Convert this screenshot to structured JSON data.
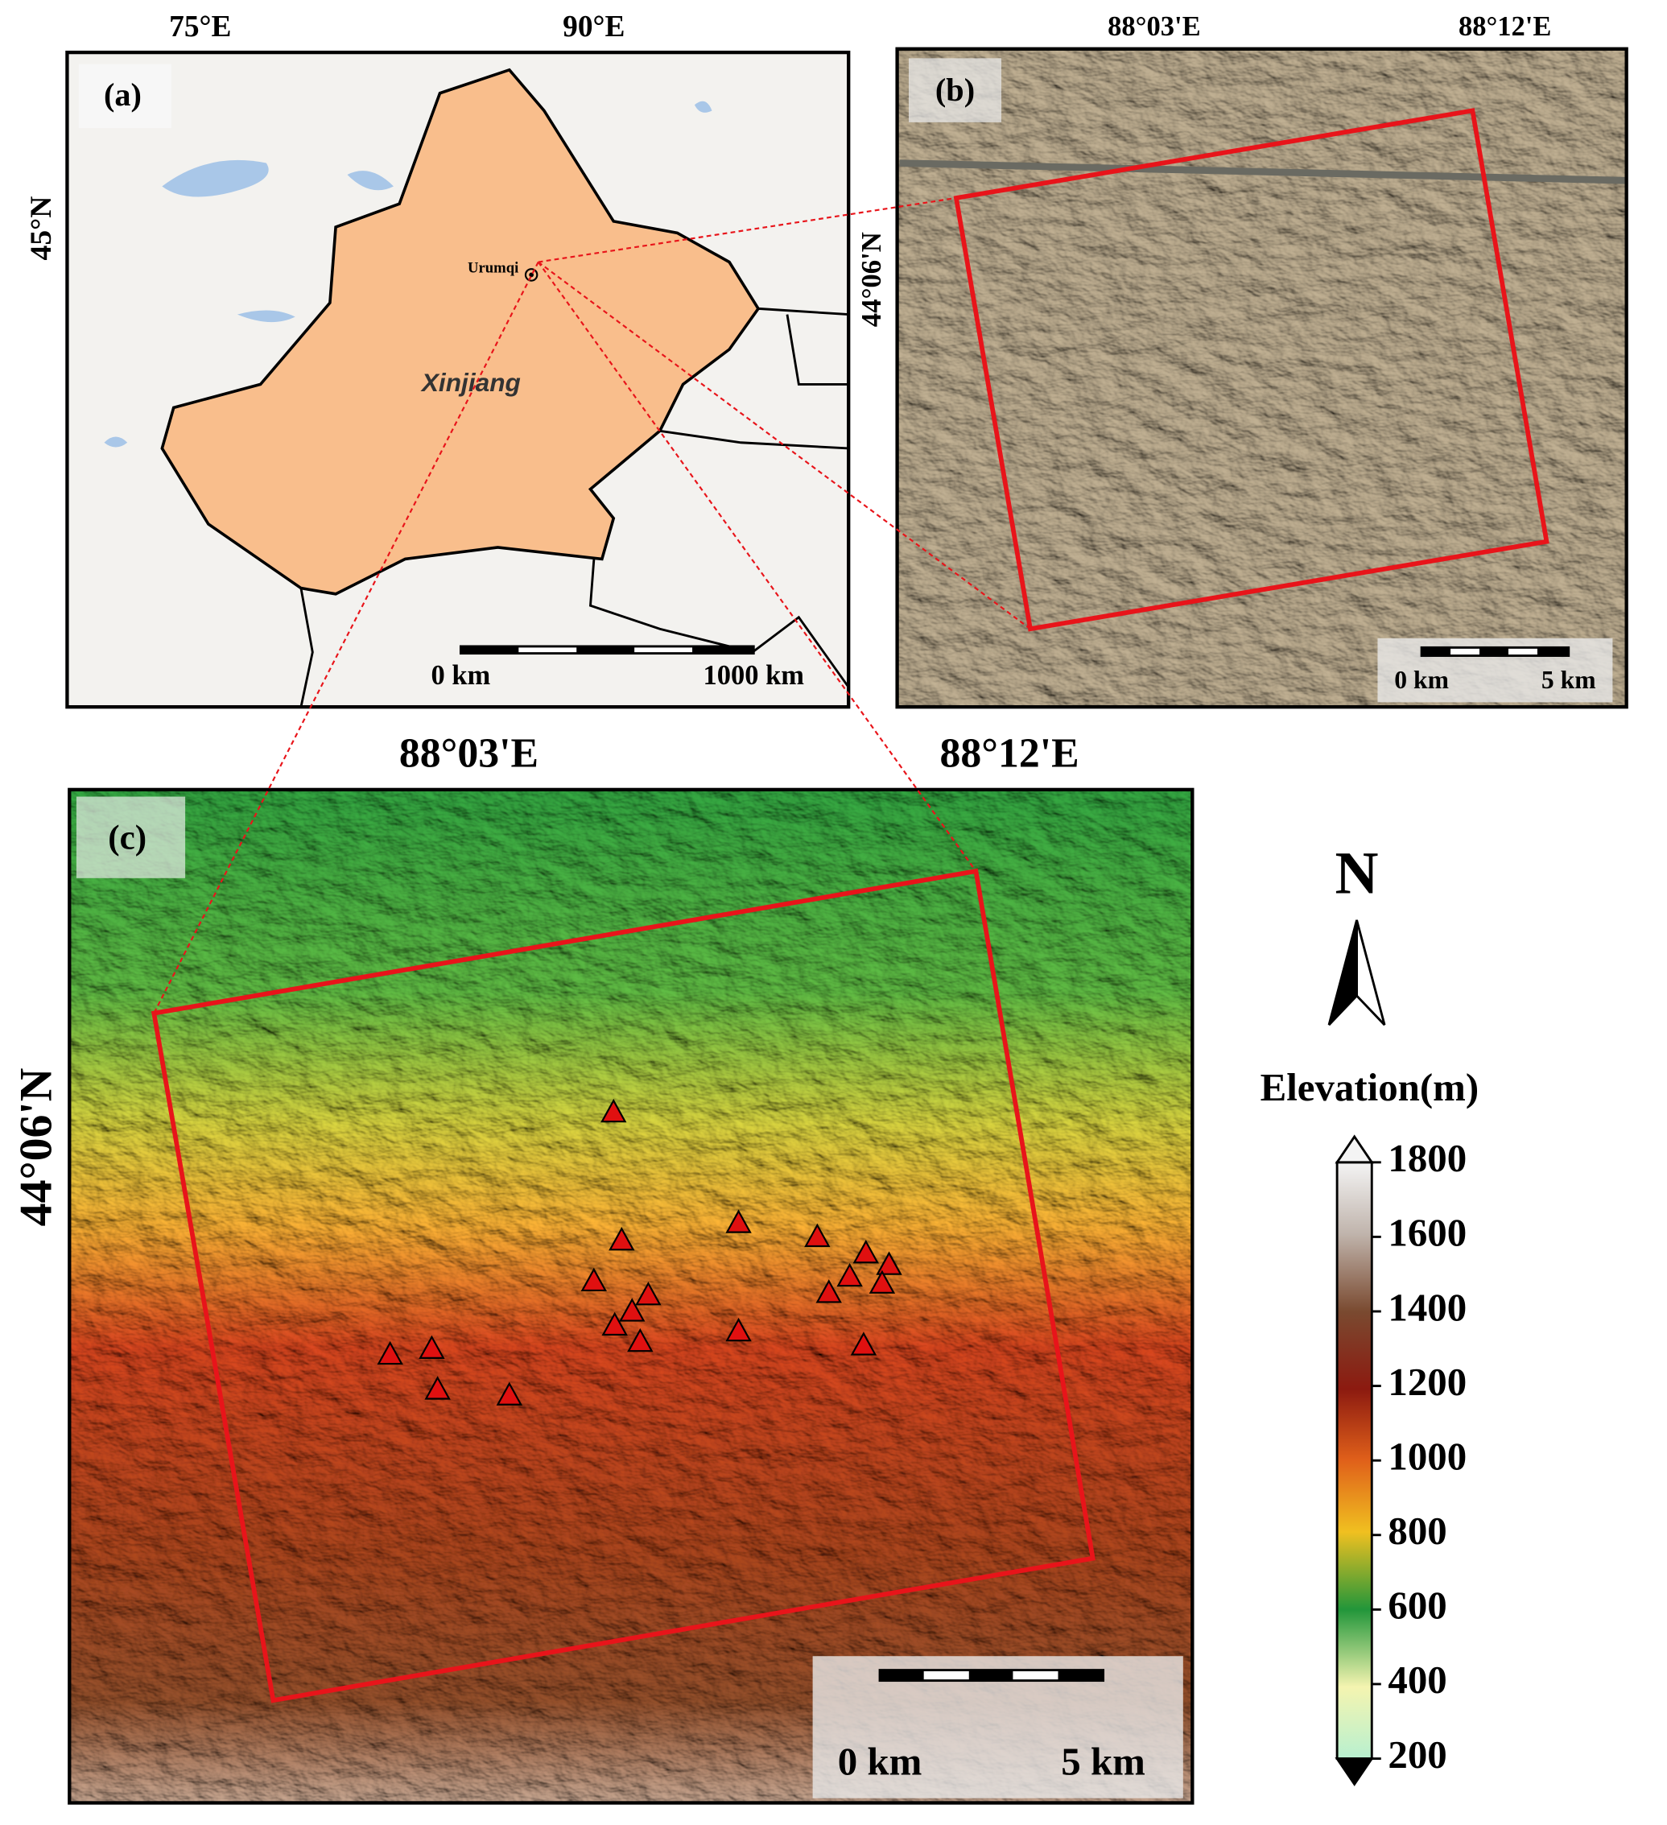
{
  "panel_a": {
    "label": "(a)",
    "xticks": [
      "75°E",
      "90°E"
    ],
    "yticks": [
      "45°N"
    ],
    "city": "Urumqi",
    "region": "Xinjiang",
    "scalebar": [
      "0 km",
      "1000 km"
    ]
  },
  "panel_b": {
    "label": "(b)",
    "xticks": [
      "88°03'E",
      "88°12'E"
    ],
    "yticks": [
      "44°06'N"
    ],
    "scalebar": [
      "0 km",
      "5 km"
    ]
  },
  "panel_c": {
    "label": "(c)",
    "xticks": [
      "88°03'E",
      "88°12'E"
    ],
    "yticks": [
      "44°06'N"
    ],
    "scalebar": [
      "0 km",
      "5 km"
    ]
  },
  "north_arrow": "N",
  "colorbar": {
    "title": "Elevation(m)",
    "ylim": [
      200,
      1800
    ],
    "yticks": [
      200,
      400,
      600,
      800,
      1000,
      1200,
      1400,
      1600,
      1800
    ]
  }
}
